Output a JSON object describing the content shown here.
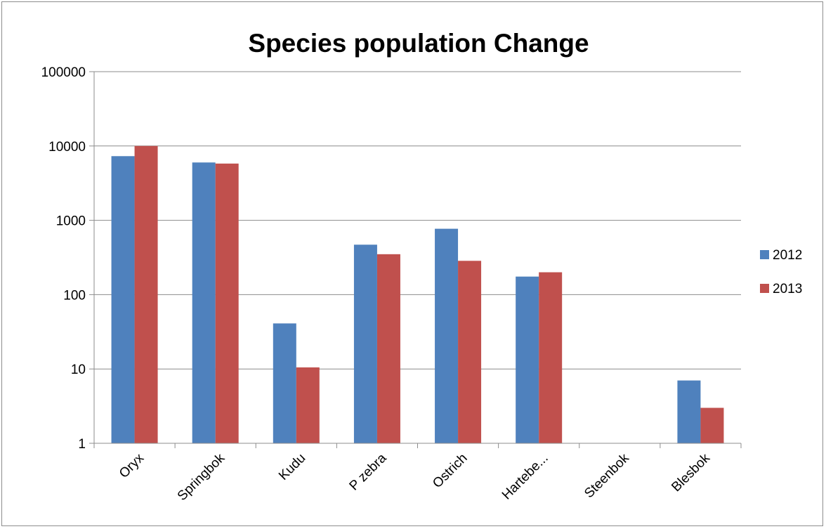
{
  "chart_data": {
    "type": "bar",
    "title": "Species population Change",
    "xlabel": "",
    "ylabel": "",
    "yscale": "log",
    "ylim": [
      1,
      100000
    ],
    "yticks": [
      "1",
      "10",
      "100",
      "1000",
      "10000",
      "100000"
    ],
    "grid": true,
    "legend_position": "right",
    "categories": [
      "Oryx",
      "Springbok",
      "Kudu",
      "P zebra",
      "Ostrich",
      "Hartebe...",
      "Steenbok",
      "Blesbok"
    ],
    "series": [
      {
        "name": "2012",
        "color": "#4f81bd",
        "values": [
          7300,
          6000,
          41,
          470,
          770,
          175,
          null,
          7
        ]
      },
      {
        "name": "2013",
        "color": "#c0504d",
        "values": [
          10000,
          5800,
          10.5,
          350,
          285,
          200,
          null,
          3
        ]
      }
    ]
  }
}
